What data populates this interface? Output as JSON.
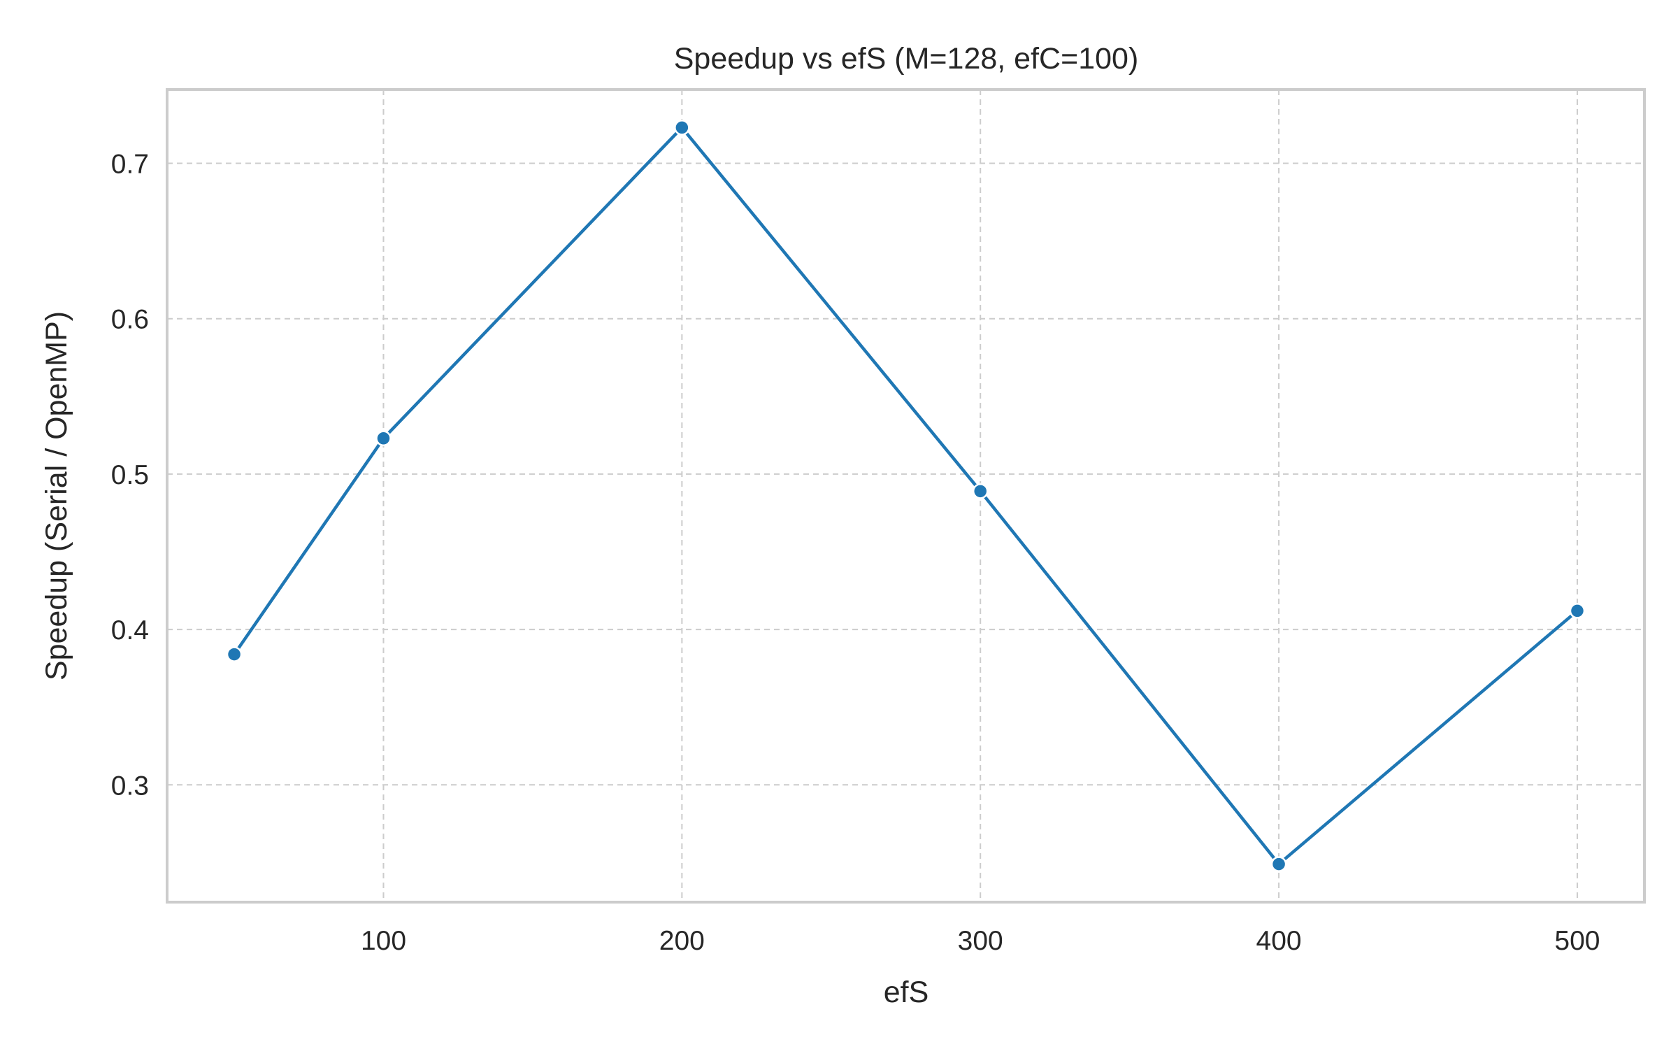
{
  "chart_data": {
    "type": "line",
    "title": "Speedup vs efS (M=128, efC=100)",
    "xlabel": "efS",
    "ylabel": "Speedup (Serial / OpenMP)",
    "x": [
      50,
      100,
      200,
      300,
      400,
      500
    ],
    "series": [
      {
        "values": [
          0.384,
          0.523,
          0.723,
          0.489,
          0.249,
          0.412
        ]
      }
    ],
    "xlim": [
      27.5,
      522.5
    ],
    "ylim": [
      0.2245,
      0.7475
    ],
    "xticks": [
      100,
      200,
      300,
      400,
      500
    ],
    "xtick_labels": [
      "100",
      "200",
      "300",
      "400",
      "500"
    ],
    "yticks": [
      0.3,
      0.4,
      0.5,
      0.6,
      0.7
    ],
    "ytick_labels": [
      "0.3",
      "0.4",
      "0.5",
      "0.6",
      "0.7"
    ],
    "grid": true,
    "grid_style": "dashed",
    "marker": "circle",
    "colors": {
      "series": "#1f77b4",
      "frame": "#cccccc",
      "grid": "#cccccc",
      "text": "#262626"
    }
  }
}
